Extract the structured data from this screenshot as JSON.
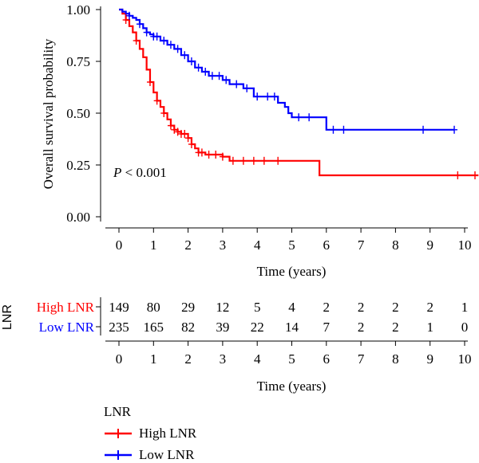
{
  "chart_data": [
    {
      "type": "line",
      "subtype": "kaplan-meier",
      "xlabel": "Time (years)",
      "ylabel": "Overall survival probability",
      "xlim": [
        0,
        10
      ],
      "ylim": [
        0,
        1
      ],
      "x_ticks": [
        "0",
        "1",
        "2",
        "3",
        "4",
        "5",
        "6",
        "7",
        "8",
        "9",
        "10"
      ],
      "y_ticks": [
        "0.00",
        "0.25",
        "0.50",
        "0.75",
        "1.00"
      ],
      "annotation": {
        "italic": "P",
        "rest": " < 0.001"
      },
      "grid": false,
      "series": [
        {
          "name": "High LNR",
          "color": "#ff0000",
          "steps": [
            [
              0,
              1.0
            ],
            [
              0.1,
              0.98
            ],
            [
              0.2,
              0.95
            ],
            [
              0.3,
              0.92
            ],
            [
              0.4,
              0.89
            ],
            [
              0.5,
              0.85
            ],
            [
              0.6,
              0.81
            ],
            [
              0.7,
              0.77
            ],
            [
              0.8,
              0.71
            ],
            [
              0.9,
              0.65
            ],
            [
              1.0,
              0.6
            ],
            [
              1.1,
              0.56
            ],
            [
              1.2,
              0.53
            ],
            [
              1.3,
              0.5
            ],
            [
              1.4,
              0.47
            ],
            [
              1.5,
              0.44
            ],
            [
              1.6,
              0.42
            ],
            [
              1.7,
              0.41
            ],
            [
              1.8,
              0.4
            ],
            [
              2.0,
              0.38
            ],
            [
              2.1,
              0.35
            ],
            [
              2.2,
              0.33
            ],
            [
              2.3,
              0.31
            ],
            [
              2.5,
              0.3
            ],
            [
              3.0,
              0.29
            ],
            [
              3.2,
              0.27
            ],
            [
              5.8,
              0.2
            ],
            [
              10.4,
              0.2
            ]
          ],
          "censor_x": [
            0.2,
            0.5,
            0.9,
            1.1,
            1.3,
            1.5,
            1.6,
            1.7,
            1.8,
            1.9,
            2.0,
            2.1,
            2.3,
            2.4,
            2.6,
            2.8,
            3.0,
            3.3,
            3.6,
            3.9,
            4.2,
            4.6,
            9.8,
            10.3
          ]
        },
        {
          "name": "Low LNR",
          "color": "#0000ff",
          "steps": [
            [
              0,
              1.0
            ],
            [
              0.1,
              0.99
            ],
            [
              0.2,
              0.98
            ],
            [
              0.3,
              0.97
            ],
            [
              0.4,
              0.96
            ],
            [
              0.5,
              0.95
            ],
            [
              0.6,
              0.93
            ],
            [
              0.7,
              0.91
            ],
            [
              0.8,
              0.89
            ],
            [
              0.9,
              0.88
            ],
            [
              1.0,
              0.87
            ],
            [
              1.2,
              0.85
            ],
            [
              1.4,
              0.83
            ],
            [
              1.6,
              0.81
            ],
            [
              1.8,
              0.78
            ],
            [
              2.0,
              0.75
            ],
            [
              2.2,
              0.72
            ],
            [
              2.4,
              0.7
            ],
            [
              2.6,
              0.68
            ],
            [
              3.0,
              0.66
            ],
            [
              3.2,
              0.64
            ],
            [
              3.6,
              0.62
            ],
            [
              3.9,
              0.58
            ],
            [
              4.6,
              0.55
            ],
            [
              4.8,
              0.53
            ],
            [
              4.9,
              0.5
            ],
            [
              5.0,
              0.48
            ],
            [
              6.0,
              0.42
            ],
            [
              9.7,
              0.42
            ]
          ],
          "censor_x": [
            0.3,
            0.6,
            0.8,
            1.0,
            1.1,
            1.3,
            1.5,
            1.7,
            1.9,
            2.1,
            2.3,
            2.5,
            2.7,
            2.9,
            3.1,
            3.4,
            3.7,
            4.0,
            4.3,
            4.5,
            5.2,
            5.5,
            6.2,
            6.5,
            8.8,
            9.7
          ]
        }
      ]
    },
    {
      "type": "table",
      "title": "LNR",
      "xlabel": "Time (years)",
      "x_ticks": [
        "0",
        "1",
        "2",
        "3",
        "4",
        "5",
        "6",
        "7",
        "8",
        "9",
        "10"
      ],
      "rows": [
        {
          "label": "High LNR",
          "color": "#ff0000",
          "values": [
            "149",
            "80",
            "29",
            "12",
            "5",
            "4",
            "2",
            "2",
            "2",
            "2",
            "1"
          ]
        },
        {
          "label": "Low LNR",
          "color": "#0000ff",
          "values": [
            "235",
            "165",
            "82",
            "39",
            "22",
            "14",
            "7",
            "2",
            "2",
            "1",
            "0"
          ]
        }
      ]
    }
  ],
  "legend": {
    "title": "LNR",
    "items": [
      {
        "label": "High LNR",
        "color": "#ff0000"
      },
      {
        "label": "Low LNR",
        "color": "#0000ff"
      }
    ]
  }
}
